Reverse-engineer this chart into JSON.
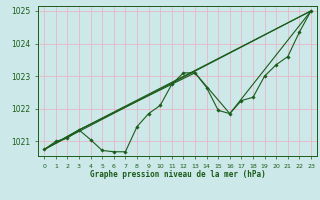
{
  "title": "Graphe pression niveau de la mer (hPa)",
  "bg_color": "#cce8e8",
  "grid_color": "#e8b8c8",
  "line_color": "#1a5c1a",
  "ylim": [
    1020.55,
    1025.15
  ],
  "xlim": [
    -0.5,
    23.5
  ],
  "yticks": [
    1021,
    1022,
    1023,
    1024,
    1025
  ],
  "xticks": [
    0,
    1,
    2,
    3,
    4,
    5,
    6,
    7,
    8,
    9,
    10,
    11,
    12,
    13,
    14,
    15,
    16,
    17,
    18,
    19,
    20,
    21,
    22,
    23
  ],
  "series_main": {
    "x": [
      0,
      1,
      2,
      3,
      4,
      5,
      6,
      7,
      8,
      9,
      10,
      11,
      12,
      13,
      14,
      15,
      16,
      17,
      18,
      19,
      20,
      21,
      22,
      23
    ],
    "y": [
      1020.75,
      1021.0,
      1021.1,
      1021.35,
      1021.05,
      1020.72,
      1020.68,
      1020.68,
      1021.45,
      1021.85,
      1022.1,
      1022.75,
      1023.1,
      1023.1,
      1022.65,
      1021.95,
      1021.85,
      1022.25,
      1022.35,
      1023.0,
      1023.35,
      1023.6,
      1024.35,
      1025.0
    ]
  },
  "series_line1": {
    "x": [
      0,
      23
    ],
    "y": [
      1020.75,
      1025.0
    ]
  },
  "series_line2": {
    "x": [
      0,
      3,
      23
    ],
    "y": [
      1020.75,
      1021.35,
      1025.0
    ]
  },
  "series_line3": {
    "x": [
      0,
      3,
      13,
      16,
      23
    ],
    "y": [
      1020.75,
      1021.35,
      1023.1,
      1021.85,
      1025.0
    ]
  }
}
